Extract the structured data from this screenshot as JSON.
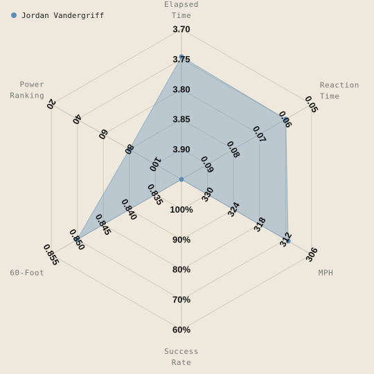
{
  "chart_data": {
    "type": "radar",
    "legend": {
      "position": "top-left",
      "entries": [
        {
          "name": "Jordan Vandergriff",
          "color": "#5b8db8"
        }
      ]
    },
    "axes": [
      {
        "key": "elapsed",
        "title": [
          "Elapsed",
          "Time"
        ],
        "ticks": [
          "3.70",
          "3.75",
          "3.80",
          "3.85",
          "3.90"
        ],
        "range": [
          3.95,
          3.7
        ]
      },
      {
        "key": "reaction",
        "title": [
          "Reaction",
          "Time"
        ],
        "ticks": [
          "0.05",
          "0.06",
          "0.07",
          "0.08",
          "0.09"
        ],
        "range": [
          0.1,
          0.05
        ]
      },
      {
        "key": "mph",
        "title": [
          "MPH"
        ],
        "ticks": [
          "306",
          "312",
          "318",
          "324",
          "330"
        ],
        "range": [
          300,
          330
        ]
      },
      {
        "key": "success",
        "title": [
          "Success",
          "Rate"
        ],
        "ticks": [
          "60%",
          "70%",
          "80%",
          "90%",
          "100%"
        ],
        "range": [
          50,
          100
        ]
      },
      {
        "key": "sixty",
        "title": [
          "60-Foot"
        ],
        "ticks": [
          "0.855",
          "0.850",
          "0.845",
          "0.840",
          "0.835"
        ],
        "range": [
          0.86,
          0.835
        ]
      },
      {
        "key": "power",
        "title": [
          "Power",
          "Ranking"
        ],
        "ticks": [
          "20",
          "40",
          "60",
          "80",
          "100"
        ],
        "range": [
          0,
          100
        ]
      }
    ],
    "series": [
      {
        "name": "Jordan Vandergriff",
        "color": "#5b8db8",
        "values": {
          "elapsed": 3.746,
          "reaction": 0.0599,
          "mph": 324.6,
          "success": 50,
          "sixty": 0.8399,
          "power": 40
        }
      }
    ],
    "grid": true
  }
}
